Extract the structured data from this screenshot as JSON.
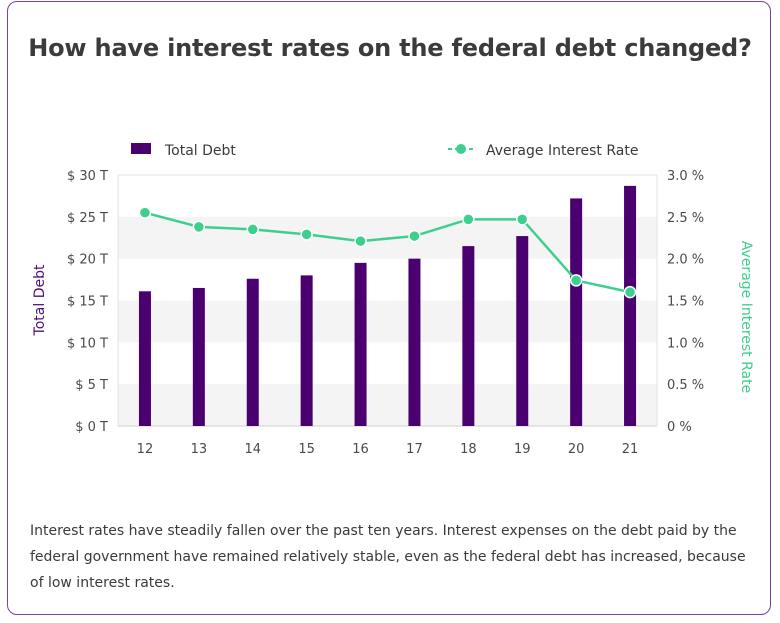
{
  "card": {
    "title": "How have interest rates on the federal debt changed?",
    "description": "Interest rates have steadily fallen over the past ten years. Interest expenses on the debt paid by the federal government have remained relatively stable, even as the federal debt has increased, because of low interest rates."
  },
  "colors": {
    "bar": "#4b0070",
    "line": "#3ecf8e",
    "border": "#7a3fa6",
    "band": "#f4f4f4"
  },
  "chart_data": {
    "type": "bar",
    "categories": [
      "12",
      "13",
      "14",
      "15",
      "16",
      "17",
      "18",
      "19",
      "20",
      "21"
    ],
    "series": [
      {
        "name": "Total Debt",
        "type": "bar",
        "axis": "left",
        "values": [
          16.1,
          16.5,
          17.6,
          18.0,
          19.5,
          20.0,
          21.5,
          22.7,
          27.2,
          28.7
        ]
      },
      {
        "name": "Average Interest Rate",
        "type": "line",
        "axis": "right",
        "values": [
          2.55,
          2.38,
          2.35,
          2.29,
          2.21,
          2.27,
          2.47,
          2.47,
          1.74,
          1.6
        ]
      }
    ],
    "ylabel": "Total Debt",
    "y2label": "Average Interest Rate",
    "ylim": [
      0,
      30
    ],
    "y2lim": [
      0,
      3.0
    ],
    "yticks": [
      "$ 0 T",
      "$ 5 T",
      "$ 10 T",
      "$ 15 T",
      "$ 20 T",
      "$ 25 T",
      "$ 30 T"
    ],
    "y2ticks": [
      "0 %",
      "0.5 %",
      "1.0 %",
      "1.5 %",
      "2.0 %",
      "2.5 %",
      "3.0 %"
    ],
    "legend": "top",
    "grid": "alternating bands"
  }
}
